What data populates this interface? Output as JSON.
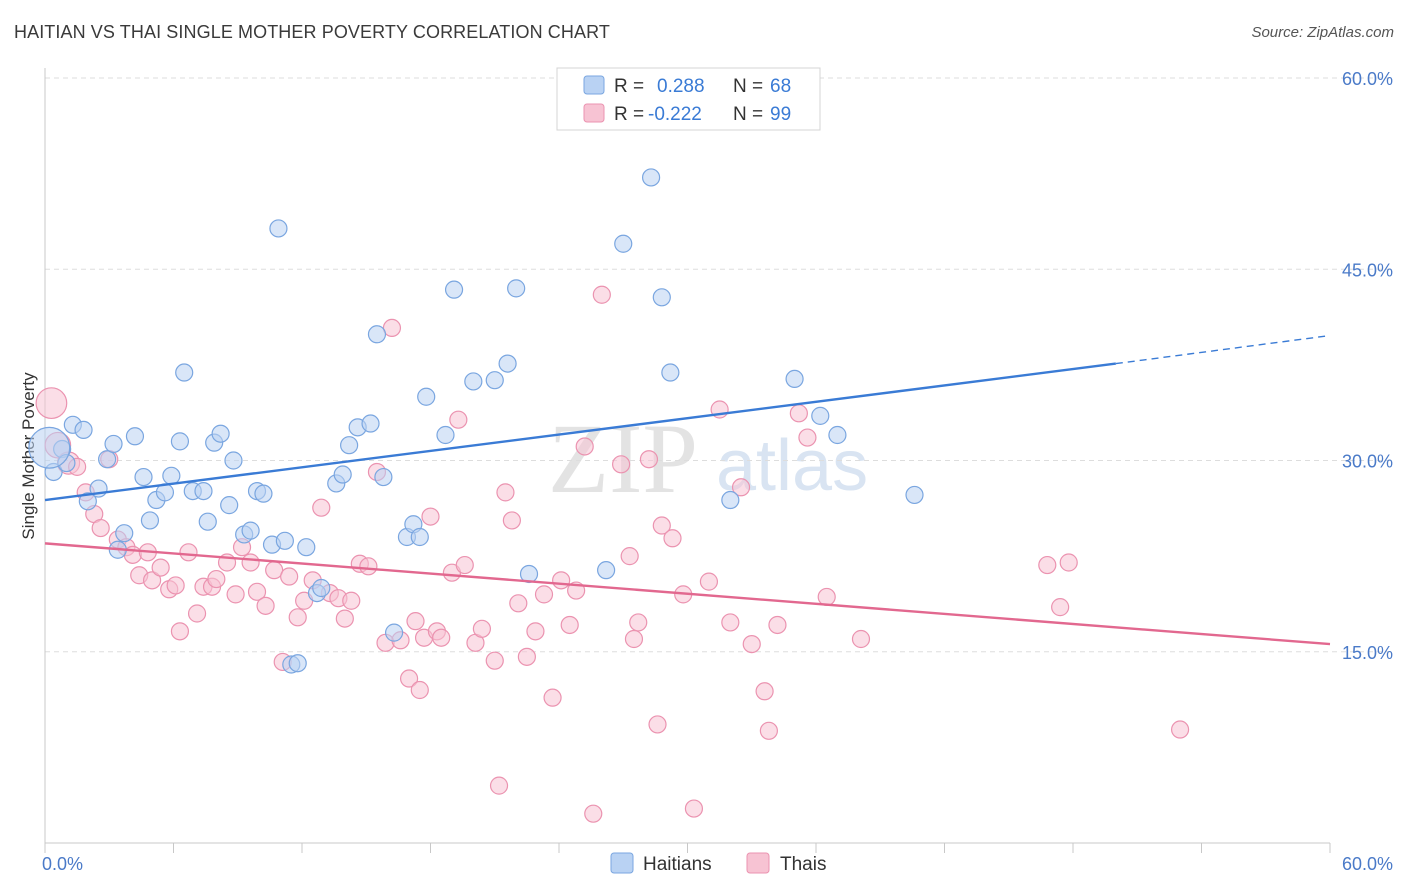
{
  "title": "HAITIAN VS THAI SINGLE MOTHER POVERTY CORRELATION CHART",
  "source": "Source: ZipAtlas.com",
  "watermark": {
    "zip": "ZIP",
    "atlas": "atlas"
  },
  "legend": {
    "r_label": "R =",
    "n_label": "N =",
    "rows": [
      {
        "r": "0.288",
        "n": "68"
      },
      {
        "r": "-0.222",
        "n": "99"
      }
    ]
  },
  "colors": {
    "haitians_fill": "#b9d2f3",
    "haitians_stroke": "#7aa6e0",
    "haitians_line": "#3a7bd5",
    "thais_fill": "#f7c3d3",
    "thais_stroke": "#eb93b0",
    "thais_line": "#e2688f",
    "tick": "#4a7ac8",
    "grid": "#dddddd"
  },
  "chart_data": {
    "type": "scatter",
    "title": "HAITIAN VS THAI SINGLE MOTHER POVERTY CORRELATION CHART",
    "xlabel": "",
    "ylabel": "Single Mother Poverty",
    "xlim": [
      0,
      60
    ],
    "ylim": [
      0,
      60
    ],
    "x_tick_labels": [
      "0.0%",
      "60.0%"
    ],
    "y_ticks": [
      15,
      30,
      45,
      60
    ],
    "y_tick_labels": [
      "15.0%",
      "30.0%",
      "45.0%",
      "60.0%"
    ],
    "grid": true,
    "legend_position": "top-center",
    "series": [
      {
        "name": "Haitians",
        "r": 0.288,
        "n": 68,
        "trend": {
          "x0": 0,
          "y0": 26.9,
          "x1": 50,
          "y1": 37.6,
          "dashed_to_x": 60,
          "dashed_to_y": 39.8
        },
        "points": [
          [
            0.4,
            29.1
          ],
          [
            0.8,
            30.9
          ],
          [
            1.0,
            29.8
          ],
          [
            1.3,
            32.8
          ],
          [
            1.8,
            32.4
          ],
          [
            2.0,
            26.8
          ],
          [
            2.5,
            27.8
          ],
          [
            2.9,
            30.1
          ],
          [
            3.2,
            31.3
          ],
          [
            3.4,
            23.0
          ],
          [
            3.7,
            24.3
          ],
          [
            4.2,
            31.9
          ],
          [
            4.6,
            28.7
          ],
          [
            4.9,
            25.3
          ],
          [
            5.2,
            26.9
          ],
          [
            5.6,
            27.5
          ],
          [
            5.9,
            28.8
          ],
          [
            6.3,
            31.5
          ],
          [
            6.5,
            36.9
          ],
          [
            6.9,
            27.6
          ],
          [
            7.4,
            27.6
          ],
          [
            7.6,
            25.2
          ],
          [
            7.9,
            31.4
          ],
          [
            8.2,
            32.1
          ],
          [
            8.6,
            26.5
          ],
          [
            8.8,
            30.0
          ],
          [
            9.3,
            24.2
          ],
          [
            9.6,
            24.5
          ],
          [
            9.9,
            27.6
          ],
          [
            10.2,
            27.4
          ],
          [
            10.9,
            48.2
          ],
          [
            10.6,
            23.4
          ],
          [
            11.2,
            23.7
          ],
          [
            11.5,
            14.0
          ],
          [
            11.8,
            14.1
          ],
          [
            12.2,
            23.2
          ],
          [
            12.7,
            19.6
          ],
          [
            12.9,
            20.0
          ],
          [
            13.6,
            28.2
          ],
          [
            13.9,
            28.9
          ],
          [
            14.2,
            31.2
          ],
          [
            14.6,
            32.6
          ],
          [
            15.2,
            32.9
          ],
          [
            15.8,
            28.7
          ],
          [
            15.5,
            39.9
          ],
          [
            16.3,
            16.5
          ],
          [
            16.9,
            24.0
          ],
          [
            17.2,
            25.0
          ],
          [
            17.5,
            24.0
          ],
          [
            17.8,
            35.0
          ],
          [
            18.7,
            32.0
          ],
          [
            19.1,
            43.4
          ],
          [
            20.0,
            36.2
          ],
          [
            21.0,
            36.3
          ],
          [
            21.6,
            37.6
          ],
          [
            22.0,
            43.5
          ],
          [
            22.6,
            21.1
          ],
          [
            26.2,
            21.4
          ],
          [
            27.0,
            47.0
          ],
          [
            28.3,
            52.2
          ],
          [
            28.8,
            42.8
          ],
          [
            29.2,
            36.9
          ],
          [
            32.0,
            26.9
          ],
          [
            35.0,
            36.4
          ],
          [
            36.2,
            33.5
          ],
          [
            37.0,
            32.0
          ],
          [
            40.6,
            27.3
          ],
          [
            0.2,
            31.0
          ]
        ],
        "point_sizes": [
          1,
          1,
          1,
          1,
          1,
          1,
          1,
          1,
          1,
          1,
          1,
          1,
          1,
          1,
          1,
          1,
          1,
          1,
          1,
          1,
          1,
          1,
          1,
          1,
          1,
          1,
          1,
          1,
          1,
          1,
          1,
          1,
          1,
          1,
          1,
          1,
          1,
          1,
          1,
          1,
          1,
          1,
          1,
          1,
          1,
          1,
          1,
          1,
          1,
          1,
          1,
          1,
          1,
          1,
          1,
          1,
          1,
          1,
          1,
          1,
          1,
          1,
          1,
          1,
          1,
          1,
          1,
          2.4
        ]
      },
      {
        "name": "Thais",
        "r": -0.222,
        "n": 99,
        "trend": {
          "x0": 0,
          "y0": 23.5,
          "x1": 60,
          "y1": 15.6
        },
        "points": [
          [
            0.3,
            34.5
          ],
          [
            0.6,
            31.2
          ],
          [
            1.1,
            29.8
          ],
          [
            1.5,
            29.5
          ],
          [
            1.9,
            27.5
          ],
          [
            2.3,
            25.8
          ],
          [
            2.6,
            24.7
          ],
          [
            3.0,
            30.1
          ],
          [
            3.4,
            23.8
          ],
          [
            3.8,
            23.2
          ],
          [
            4.1,
            22.6
          ],
          [
            4.4,
            21.0
          ],
          [
            4.8,
            22.8
          ],
          [
            5.0,
            20.6
          ],
          [
            5.4,
            21.6
          ],
          [
            5.8,
            19.9
          ],
          [
            6.1,
            20.2
          ],
          [
            6.3,
            16.6
          ],
          [
            6.7,
            22.8
          ],
          [
            7.1,
            18.0
          ],
          [
            7.4,
            20.1
          ],
          [
            7.8,
            20.1
          ],
          [
            8.0,
            20.7
          ],
          [
            8.5,
            22.0
          ],
          [
            8.9,
            19.5
          ],
          [
            9.2,
            23.2
          ],
          [
            9.6,
            22.0
          ],
          [
            9.9,
            19.7
          ],
          [
            10.3,
            18.6
          ],
          [
            10.7,
            21.4
          ],
          [
            11.1,
            14.2
          ],
          [
            11.4,
            20.9
          ],
          [
            11.8,
            17.7
          ],
          [
            12.1,
            19.0
          ],
          [
            12.5,
            20.6
          ],
          [
            12.9,
            26.3
          ],
          [
            13.3,
            19.6
          ],
          [
            13.7,
            19.2
          ],
          [
            14.0,
            17.6
          ],
          [
            14.3,
            19.0
          ],
          [
            14.7,
            21.9
          ],
          [
            15.1,
            21.7
          ],
          [
            15.5,
            29.1
          ],
          [
            15.9,
            15.7
          ],
          [
            16.2,
            40.4
          ],
          [
            16.6,
            15.9
          ],
          [
            17.0,
            12.9
          ],
          [
            17.3,
            17.4
          ],
          [
            17.7,
            16.1
          ],
          [
            18.0,
            25.6
          ],
          [
            18.3,
            16.6
          ],
          [
            19.0,
            21.2
          ],
          [
            19.3,
            33.2
          ],
          [
            19.6,
            21.8
          ],
          [
            20.1,
            15.7
          ],
          [
            20.4,
            16.8
          ],
          [
            21.0,
            14.3
          ],
          [
            21.5,
            27.5
          ],
          [
            21.8,
            25.3
          ],
          [
            22.1,
            18.8
          ],
          [
            22.5,
            14.6
          ],
          [
            22.9,
            16.6
          ],
          [
            23.3,
            19.5
          ],
          [
            23.7,
            11.4
          ],
          [
            24.1,
            20.6
          ],
          [
            24.5,
            17.1
          ],
          [
            24.8,
            19.8
          ],
          [
            25.2,
            31.1
          ],
          [
            25.6,
            2.3
          ],
          [
            26.0,
            43.0
          ],
          [
            26.9,
            29.7
          ],
          [
            27.3,
            22.5
          ],
          [
            27.7,
            17.3
          ],
          [
            28.2,
            30.1
          ],
          [
            28.8,
            24.9
          ],
          [
            29.3,
            23.9
          ],
          [
            29.8,
            19.5
          ],
          [
            30.3,
            2.7
          ],
          [
            31.0,
            20.5
          ],
          [
            31.5,
            34.0
          ],
          [
            32.0,
            17.3
          ],
          [
            32.5,
            27.9
          ],
          [
            33.0,
            15.6
          ],
          [
            33.6,
            11.9
          ],
          [
            34.2,
            17.1
          ],
          [
            35.2,
            33.7
          ],
          [
            35.6,
            31.8
          ],
          [
            36.5,
            19.3
          ],
          [
            38.1,
            16.0
          ],
          [
            46.8,
            21.8
          ],
          [
            47.4,
            18.5
          ],
          [
            47.8,
            22.0
          ],
          [
            53.0,
            8.9
          ],
          [
            21.2,
            4.5
          ],
          [
            17.5,
            12.0
          ],
          [
            28.6,
            9.3
          ],
          [
            33.8,
            8.8
          ],
          [
            27.5,
            16.0
          ],
          [
            18.5,
            16.1
          ]
        ],
        "point_sizes": [
          1.8,
          1.5,
          1.3,
          1,
          1,
          1,
          1,
          1,
          1,
          1,
          1,
          1,
          1,
          1,
          1,
          1,
          1,
          1,
          1,
          1,
          1,
          1,
          1,
          1,
          1,
          1,
          1,
          1,
          1,
          1,
          1,
          1,
          1,
          1,
          1,
          1,
          1,
          1,
          1,
          1,
          1,
          1,
          1,
          1,
          1,
          1,
          1,
          1,
          1,
          1,
          1,
          1,
          1,
          1,
          1,
          1,
          1,
          1,
          1,
          1,
          1,
          1,
          1,
          1,
          1,
          1,
          1,
          1,
          1,
          1,
          1,
          1,
          1,
          1,
          1,
          1,
          1,
          1,
          1,
          1,
          1,
          1,
          1,
          1,
          1,
          1,
          1,
          1,
          1,
          1,
          1,
          1,
          1,
          1,
          1,
          1,
          1,
          1,
          1
        ]
      }
    ]
  }
}
